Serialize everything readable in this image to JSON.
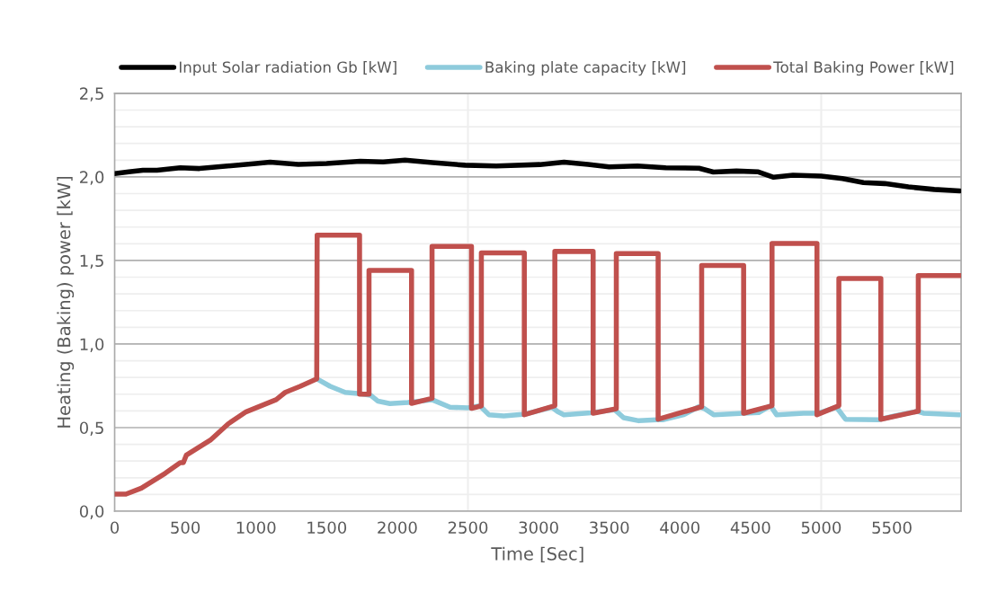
{
  "chart_data": {
    "type": "line",
    "xlabel": "Time [Sec]",
    "ylabel": "Heating (Baking) power [kW]",
    "xlim": [
      0,
      5990
    ],
    "xticks": [
      0,
      500,
      1000,
      1500,
      2000,
      2500,
      3000,
      3500,
      4000,
      4500,
      5000,
      5500
    ],
    "ylim": [
      0,
      2.5
    ],
    "yticks": [
      {
        "value": 0,
        "label": "0,0"
      },
      {
        "value": 0.5,
        "label": "0,5"
      },
      {
        "value": 1.0,
        "label": "1,0"
      },
      {
        "value": 1.5,
        "label": "1,5"
      },
      {
        "value": 2.0,
        "label": "2,0"
      },
      {
        "value": 2.5,
        "label": "2,5"
      }
    ],
    "grid": "y",
    "legend": "top",
    "marker": "none",
    "line_style": "solid",
    "ref_lines": [
      {
        "axis": "x",
        "value": 2500,
        "label": null,
        "color": "#eeeeee"
      },
      {
        "axis": "x",
        "value": 5000,
        "label": null,
        "color": "#eeeeee"
      }
    ],
    "series": [
      {
        "name": "Input Solar radiation Gb [kW]",
        "color": "#000000",
        "x": [
          0,
          100,
          200,
          300,
          464,
          600,
          800,
          1000,
          1100,
          1300,
          1500,
          1737,
          1900,
          2055,
          2250,
          2480,
          2700,
          3009,
          3180,
          3350,
          3499,
          3700,
          3900,
          4135,
          4237,
          4400,
          4555,
          4663,
          4800,
          5000,
          5150,
          5299,
          5450,
          5617,
          5800,
          5980
        ],
        "values": [
          2.02,
          2.03,
          2.04,
          2.04,
          2.055,
          2.05,
          2.065,
          2.08,
          2.088,
          2.075,
          2.08,
          2.094,
          2.09,
          2.1,
          2.085,
          2.07,
          2.065,
          2.074,
          2.088,
          2.075,
          2.06,
          2.065,
          2.055,
          2.052,
          2.029,
          2.035,
          2.03,
          1.998,
          2.01,
          2.005,
          1.99,
          1.966,
          1.96,
          1.94,
          1.925,
          1.916
        ]
      },
      {
        "name": "Baking plate capacity [kW]",
        "color": "#8ecbdc",
        "x": [
          1430,
          1525,
          1631,
          1737,
          1811,
          1864,
          1948,
          2075,
          2246,
          2373,
          2500,
          2585,
          2648,
          2754,
          2903,
          3094,
          3136,
          3179,
          3370,
          3539,
          3602,
          3709,
          3836,
          3878,
          4027,
          4133,
          4175,
          4239,
          4451,
          4557,
          4641,
          4684,
          4875,
          4981,
          5108,
          5172,
          5405,
          5511,
          5681,
          5723,
          5978
        ],
        "values": [
          0.792,
          0.747,
          0.711,
          0.703,
          0.694,
          0.658,
          0.644,
          0.65,
          0.667,
          0.622,
          0.618,
          0.63,
          0.577,
          0.57,
          0.58,
          0.622,
          0.595,
          0.577,
          0.589,
          0.607,
          0.559,
          0.541,
          0.547,
          0.547,
          0.577,
          0.625,
          0.613,
          0.577,
          0.586,
          0.59,
          0.631,
          0.577,
          0.586,
          0.586,
          0.622,
          0.55,
          0.547,
          0.568,
          0.598,
          0.586,
          0.577
        ]
      },
      {
        "name": "Total Baking Power [kW]",
        "color": "#c0504d",
        "x": [
          0,
          80,
          189,
          358,
          464,
          486,
          507,
          677,
          804,
          931,
          1143,
          1207,
          1313,
          1430,
          1433,
          1733,
          1733,
          1800,
          1800,
          2101,
          2101,
          2246,
          2246,
          2525,
          2525,
          2595,
          2595,
          2899,
          2899,
          3115,
          3115,
          3386,
          3386,
          3550,
          3550,
          3846,
          3846,
          4154,
          4154,
          4451,
          4451,
          4652,
          4652,
          4970,
          4970,
          5125,
          5125,
          5422,
          5422,
          5687,
          5687,
          5986
        ],
        "values": [
          0.102,
          0.102,
          0.138,
          0.227,
          0.29,
          0.29,
          0.335,
          0.425,
          0.523,
          0.595,
          0.667,
          0.711,
          0.747,
          0.792,
          1.652,
          1.652,
          0.7,
          0.7,
          1.441,
          1.441,
          0.645,
          0.675,
          1.584,
          1.584,
          0.615,
          0.63,
          1.545,
          1.545,
          0.577,
          0.631,
          1.554,
          1.554,
          0.586,
          0.613,
          1.541,
          1.541,
          0.55,
          0.625,
          1.47,
          1.47,
          0.586,
          0.631,
          1.602,
          1.602,
          0.577,
          0.631,
          1.392,
          1.392,
          0.55,
          0.598,
          1.41,
          1.41
        ]
      }
    ]
  }
}
